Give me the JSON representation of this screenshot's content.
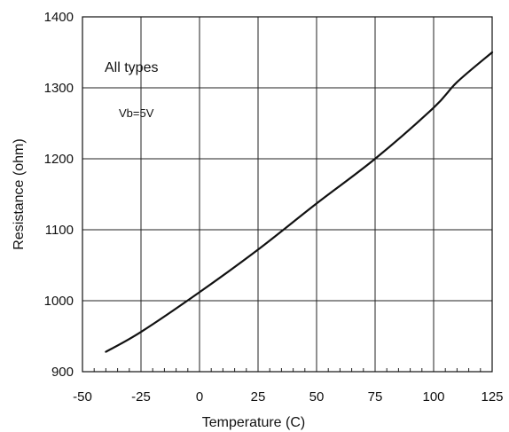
{
  "chart_data": {
    "type": "line",
    "xlabel": "Temperature (C)",
    "ylabel": "Resistance (ohm)",
    "xlim": [
      -50,
      125
    ],
    "ylim": [
      900,
      1400
    ],
    "x_ticks": [
      -50,
      -25,
      0,
      25,
      50,
      75,
      100,
      125
    ],
    "y_ticks": [
      900,
      1000,
      1100,
      1200,
      1300,
      1400
    ],
    "x_tick_labels": [
      "-50",
      "-25",
      "0",
      "25",
      "50",
      "75",
      "100",
      "125"
    ],
    "y_tick_labels": [
      "900",
      "1000",
      "1100",
      "1200",
      "1300",
      "1400"
    ],
    "grid": true,
    "annotations": [
      "All types",
      "Vb=5V"
    ],
    "series": [
      {
        "x": [
          -40,
          -25,
          0,
          25,
          50,
          75,
          100,
          110,
          125
        ],
        "y": [
          928,
          956,
          1012,
          1072,
          1137,
          1200,
          1272,
          1308,
          1350
        ]
      }
    ]
  },
  "colors": {
    "line": "#111111",
    "grid": "#222222",
    "background": "#ffffff"
  }
}
